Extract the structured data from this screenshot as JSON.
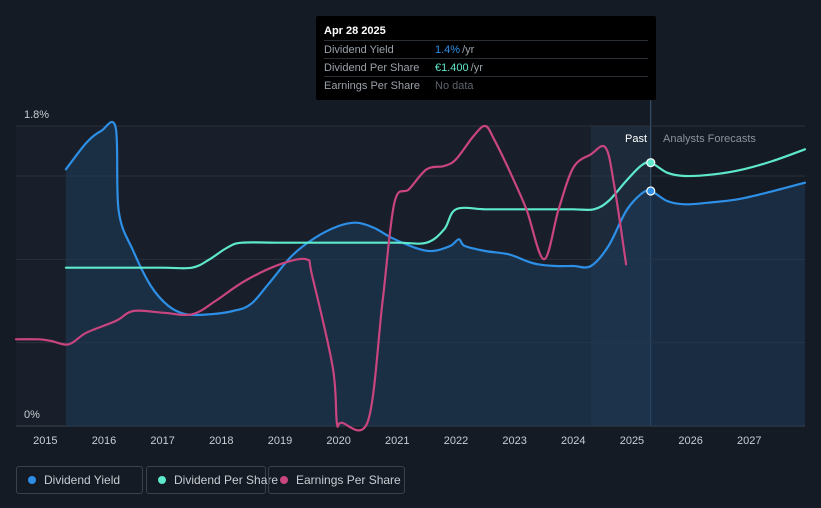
{
  "colors": {
    "background": "#151b24",
    "dividend_yield": "#2d8fe6",
    "dividend_per_share": "#5ee8cc",
    "earnings_per_share": "#c8457f",
    "forecast_band": "#1c2a3a"
  },
  "tooltip": {
    "date": "Apr 28 2025",
    "rows": [
      {
        "label": "Dividend Yield",
        "value": "1.4%",
        "unit": "/yr"
      },
      {
        "label": "Dividend Per Share",
        "value": "€1.400",
        "unit": "/yr"
      },
      {
        "label": "Earnings Per Share",
        "value": "No data",
        "unit": ""
      }
    ]
  },
  "labels": {
    "past": "Past",
    "forecast": "Analysts Forecasts"
  },
  "legend": [
    {
      "label": "Dividend Yield",
      "color": "#2d8fe6"
    },
    {
      "label": "Dividend Per Share",
      "color": "#5ee8cc"
    },
    {
      "label": "Earnings Per Share",
      "color": "#c8457f"
    }
  ],
  "chart_data": {
    "type": "line",
    "y_tick_labels": [
      "1.8%",
      "0%"
    ],
    "ylim": [
      0,
      1.8
    ],
    "x_ticks": [
      2015,
      2016,
      2017,
      2018,
      2019,
      2020,
      2021,
      2022,
      2023,
      2024,
      2025,
      2026,
      2027
    ],
    "xlim": [
      2014.5,
      2027.95
    ],
    "past_end": 2025.32,
    "forecast_start": 2024.3,
    "series": [
      {
        "name": "Dividend Yield",
        "area": true,
        "marker": {
          "x": 2025.32,
          "y": 1.41
        },
        "points": [
          [
            2015.35,
            1.54
          ],
          [
            2015.7,
            1.7
          ],
          [
            2015.95,
            1.77
          ],
          [
            2016.2,
            1.79
          ],
          [
            2016.25,
            1.29
          ],
          [
            2016.5,
            1.05
          ],
          [
            2016.8,
            0.84
          ],
          [
            2017.1,
            0.72
          ],
          [
            2017.4,
            0.67
          ],
          [
            2017.8,
            0.67
          ],
          [
            2018.2,
            0.69
          ],
          [
            2018.5,
            0.73
          ],
          [
            2018.8,
            0.85
          ],
          [
            2019.2,
            1.02
          ],
          [
            2019.6,
            1.13
          ],
          [
            2020.0,
            1.2
          ],
          [
            2020.3,
            1.22
          ],
          [
            2020.6,
            1.19
          ],
          [
            2020.9,
            1.13
          ],
          [
            2021.3,
            1.07
          ],
          [
            2021.6,
            1.05
          ],
          [
            2021.9,
            1.08
          ],
          [
            2022.05,
            1.12
          ],
          [
            2022.15,
            1.08
          ],
          [
            2022.5,
            1.05
          ],
          [
            2022.9,
            1.03
          ],
          [
            2023.2,
            0.99
          ],
          [
            2023.4,
            0.97
          ],
          [
            2023.7,
            0.96
          ],
          [
            2024.0,
            0.96
          ],
          [
            2024.3,
            0.96
          ],
          [
            2024.6,
            1.08
          ],
          [
            2024.9,
            1.29
          ],
          [
            2025.15,
            1.39
          ],
          [
            2025.32,
            1.41
          ],
          [
            2025.6,
            1.35
          ],
          [
            2025.9,
            1.33
          ],
          [
            2026.3,
            1.34
          ],
          [
            2026.8,
            1.36
          ],
          [
            2027.3,
            1.4
          ],
          [
            2027.95,
            1.46
          ]
        ]
      },
      {
        "name": "Dividend Per Share",
        "area": false,
        "marker": {
          "x": 2025.32,
          "y": 1.58
        },
        "points": [
          [
            2015.35,
            0.95
          ],
          [
            2016.0,
            0.95
          ],
          [
            2017.0,
            0.95
          ],
          [
            2017.5,
            0.95
          ],
          [
            2017.8,
            1.0
          ],
          [
            2018.1,
            1.07
          ],
          [
            2018.35,
            1.1
          ],
          [
            2019.0,
            1.1
          ],
          [
            2020.0,
            1.1
          ],
          [
            2021.0,
            1.1
          ],
          [
            2021.5,
            1.1
          ],
          [
            2021.8,
            1.18
          ],
          [
            2022.0,
            1.3
          ],
          [
            2022.5,
            1.3
          ],
          [
            2023.0,
            1.3
          ],
          [
            2023.5,
            1.3
          ],
          [
            2024.0,
            1.3
          ],
          [
            2024.35,
            1.3
          ],
          [
            2024.6,
            1.35
          ],
          [
            2024.9,
            1.47
          ],
          [
            2025.15,
            1.56
          ],
          [
            2025.32,
            1.58
          ],
          [
            2025.6,
            1.52
          ],
          [
            2025.9,
            1.5
          ],
          [
            2026.4,
            1.51
          ],
          [
            2026.9,
            1.54
          ],
          [
            2027.4,
            1.59
          ],
          [
            2027.95,
            1.66
          ]
        ]
      },
      {
        "name": "Earnings Per Share",
        "area": false,
        "points": [
          [
            2014.5,
            0.52
          ],
          [
            2014.9,
            0.52
          ],
          [
            2015.1,
            0.51
          ],
          [
            2015.4,
            0.49
          ],
          [
            2015.7,
            0.56
          ],
          [
            2016.2,
            0.63
          ],
          [
            2016.5,
            0.69
          ],
          [
            2017.0,
            0.68
          ],
          [
            2017.5,
            0.67
          ],
          [
            2017.9,
            0.75
          ],
          [
            2018.4,
            0.87
          ],
          [
            2019.0,
            0.97
          ],
          [
            2019.45,
            1.0
          ],
          [
            2019.55,
            0.9
          ],
          [
            2019.9,
            0.35
          ],
          [
            2019.97,
            0.02
          ],
          [
            2020.05,
            0.02
          ],
          [
            2020.5,
            0.03
          ],
          [
            2020.75,
            0.75
          ],
          [
            2020.95,
            1.34
          ],
          [
            2021.2,
            1.42
          ],
          [
            2021.5,
            1.54
          ],
          [
            2021.8,
            1.56
          ],
          [
            2022.0,
            1.6
          ],
          [
            2022.3,
            1.74
          ],
          [
            2022.5,
            1.8
          ],
          [
            2022.65,
            1.72
          ],
          [
            2022.9,
            1.54
          ],
          [
            2023.2,
            1.3
          ],
          [
            2023.5,
            1.0
          ],
          [
            2023.75,
            1.3
          ],
          [
            2024.0,
            1.55
          ],
          [
            2024.3,
            1.63
          ],
          [
            2024.55,
            1.67
          ],
          [
            2024.7,
            1.44
          ],
          [
            2024.9,
            0.97
          ]
        ]
      }
    ]
  }
}
